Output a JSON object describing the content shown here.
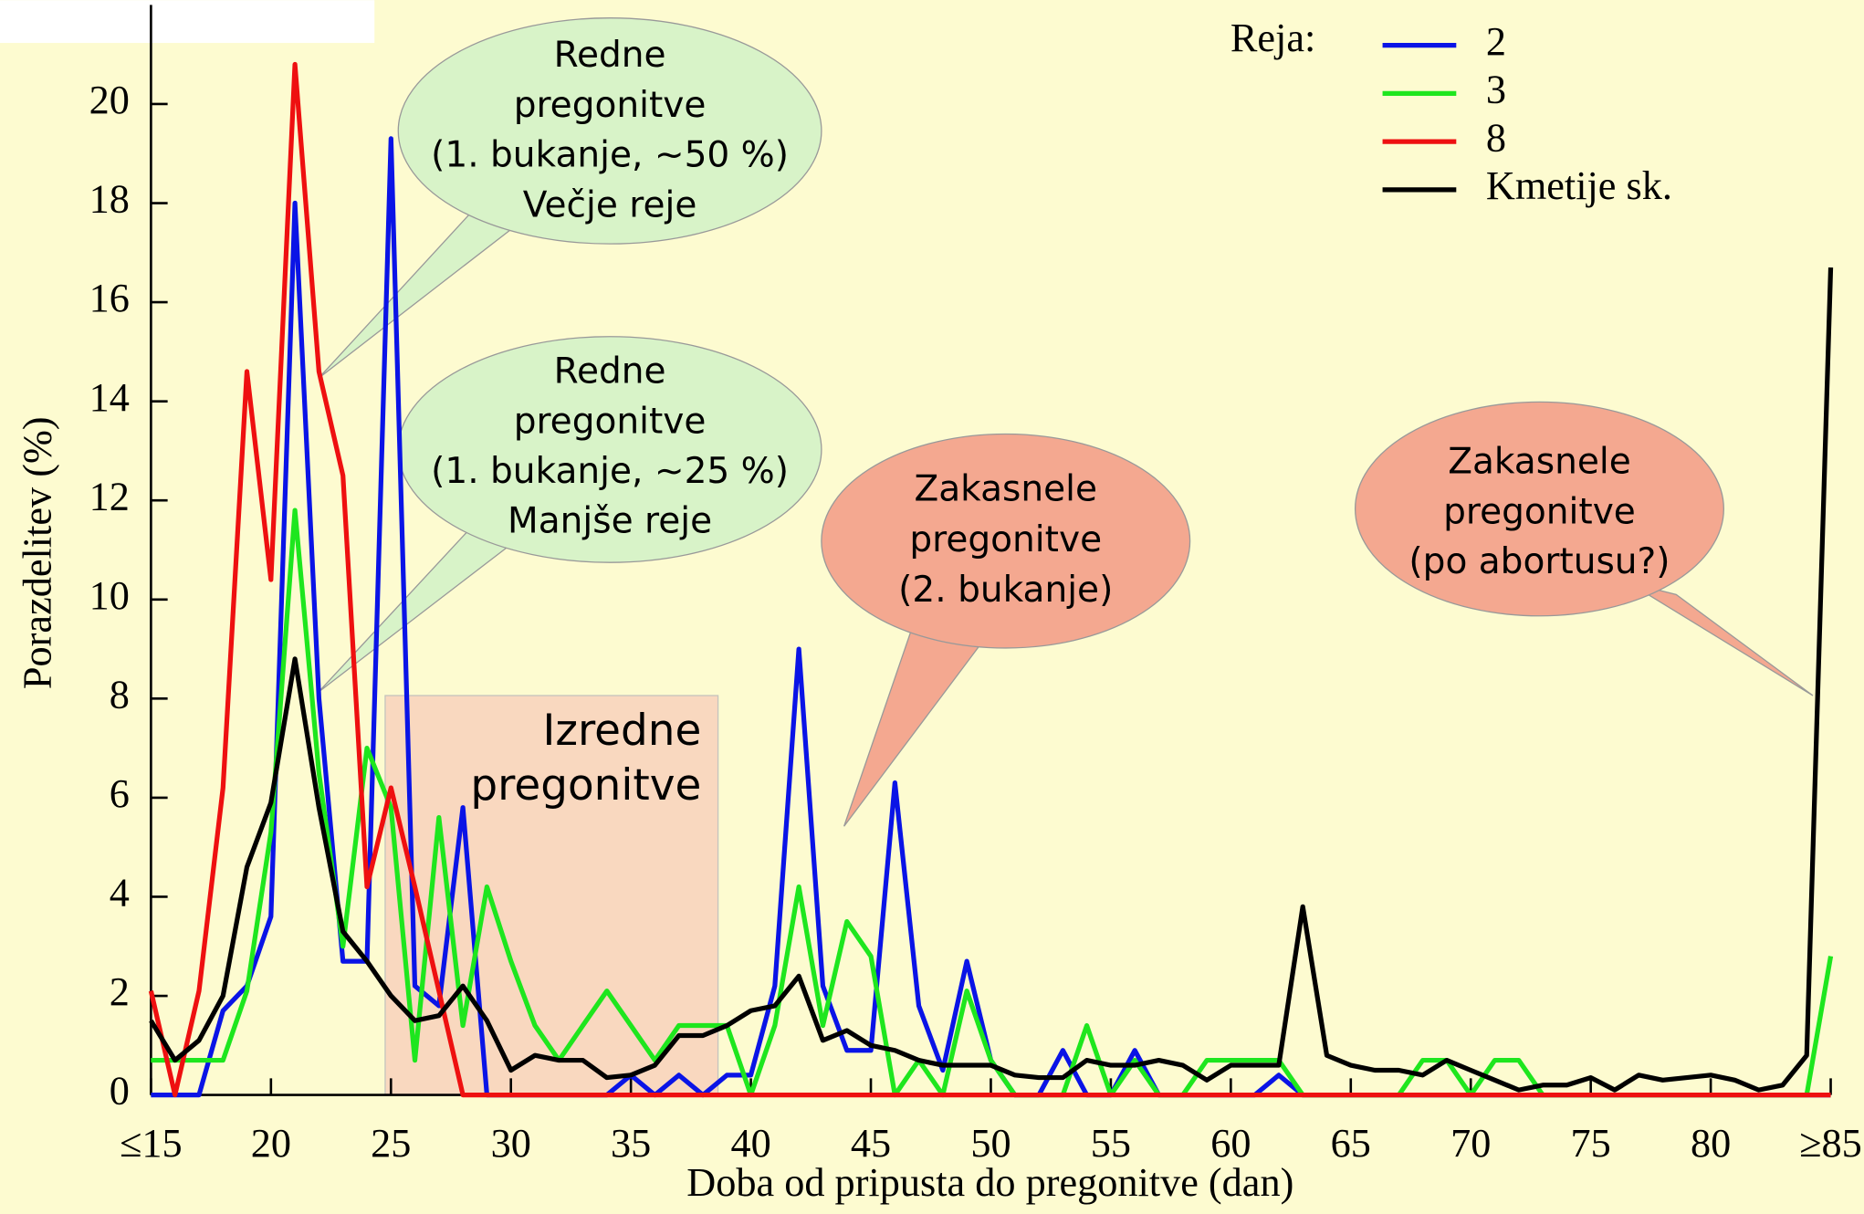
{
  "chart_data": {
    "type": "line",
    "x_label": "Doba od pripusta do pregonitve (dan)",
    "y_label": "Porazdelitev (%)",
    "legend_title": "Reja:",
    "x": [
      15,
      16,
      17,
      18,
      19,
      20,
      21,
      22,
      23,
      24,
      25,
      26,
      27,
      28,
      29,
      30,
      31,
      32,
      33,
      34,
      35,
      36,
      37,
      38,
      39,
      40,
      41,
      42,
      43,
      44,
      45,
      46,
      47,
      48,
      49,
      50,
      51,
      52,
      53,
      54,
      55,
      56,
      57,
      58,
      59,
      60,
      61,
      62,
      63,
      64,
      65,
      66,
      67,
      68,
      69,
      70,
      71,
      72,
      73,
      74,
      75,
      76,
      77,
      78,
      79,
      80,
      81,
      82,
      83,
      84,
      85
    ],
    "series": [
      {
        "name": "2",
        "color": "#0a14e6",
        "values": [
          0,
          0,
          0,
          1.7,
          2.2,
          3.6,
          18,
          8,
          2.7,
          2.7,
          19.3,
          2.2,
          1.8,
          5.8,
          0,
          0,
          0,
          0,
          0,
          0,
          0.4,
          0,
          0.4,
          0,
          0.4,
          0.4,
          2.2,
          9,
          2.2,
          0.9,
          0.9,
          6.3,
          1.8,
          0.5,
          2.7,
          0.7,
          0,
          0,
          0.9,
          0,
          0,
          0.9,
          0,
          0,
          0,
          0,
          0,
          0.4,
          0,
          0,
          0,
          0,
          0,
          0,
          0,
          0,
          0,
          0,
          0,
          0,
          0,
          0,
          0,
          0,
          0,
          0,
          0,
          0,
          0,
          0,
          0
        ]
      },
      {
        "name": "3",
        "color": "#1ee61e",
        "values": [
          0.7,
          0.7,
          0.7,
          0.7,
          2.1,
          5.3,
          11.8,
          6.5,
          3,
          7,
          5.8,
          0.7,
          5.6,
          1.4,
          4.2,
          2.7,
          1.4,
          0.7,
          1.4,
          2.1,
          1.4,
          0.7,
          1.4,
          1.4,
          1.4,
          0,
          1.4,
          4.2,
          1.4,
          3.5,
          2.8,
          0,
          0.7,
          0,
          2.1,
          0.7,
          0,
          0,
          0,
          1.4,
          0,
          0.7,
          0,
          0,
          0.7,
          0.7,
          0.7,
          0.7,
          0,
          0,
          0,
          0,
          0,
          0.7,
          0.7,
          0,
          0.7,
          0.7,
          0,
          0,
          0,
          0,
          0,
          0,
          0,
          0,
          0,
          0,
          0,
          0,
          2.8
        ]
      },
      {
        "name": "8",
        "color": "#ee1010",
        "values": [
          2.1,
          0,
          2.1,
          6.2,
          14.6,
          10.4,
          20.8,
          14.6,
          12.5,
          4.2,
          6.2,
          4.2,
          2.1,
          0,
          0,
          0,
          0,
          0,
          0,
          0,
          0,
          0,
          0,
          0,
          0,
          0,
          0,
          0,
          0,
          0,
          0,
          0,
          0,
          0,
          0,
          0,
          0,
          0,
          0,
          0,
          0,
          0,
          0,
          0,
          0,
          0,
          0,
          0,
          0,
          0,
          0,
          0,
          0,
          0,
          0,
          0,
          0,
          0,
          0,
          0,
          0,
          0,
          0,
          0,
          0,
          0,
          0,
          0,
          0,
          0,
          0
        ]
      },
      {
        "name": "Kmetije sk.",
        "color": "#000000",
        "values": [
          1.5,
          0.7,
          1.1,
          2,
          4.6,
          5.9,
          8.8,
          5.8,
          3.3,
          2.7,
          2,
          1.5,
          1.6,
          2.2,
          1.5,
          0.5,
          0.8,
          0.7,
          0.7,
          0.35,
          0.4,
          0.6,
          1.2,
          1.2,
          1.4,
          1.7,
          1.8,
          2.4,
          1.1,
          1.3,
          1,
          0.9,
          0.7,
          0.6,
          0.6,
          0.6,
          0.4,
          0.35,
          0.35,
          0.7,
          0.6,
          0.6,
          0.7,
          0.6,
          0.3,
          0.6,
          0.6,
          0.6,
          3.8,
          0.8,
          0.6,
          0.5,
          0.5,
          0.4,
          0.7,
          0.5,
          0.3,
          0.1,
          0.2,
          0.2,
          0.35,
          0.1,
          0.4,
          0.3,
          0.35,
          0.4,
          0.3,
          0.1,
          0.2,
          0.8,
          16.7
        ]
      }
    ],
    "xlim": [
      15,
      85
    ],
    "xticks": [
      {
        "value": 15,
        "label": "≤15"
      },
      20,
      25,
      30,
      35,
      40,
      45,
      50,
      55,
      60,
      65,
      70,
      75,
      80,
      {
        "value": 85,
        "label": "≥85"
      }
    ],
    "ylim": [
      0,
      22
    ],
    "yticks": [
      0,
      2,
      4,
      6,
      8,
      10,
      12,
      14,
      16,
      18,
      20
    ],
    "annotations": [
      {
        "lines": [
          "Redne",
          "pregonitve",
          "(1. bukanje, ~50 %)",
          "Večje reje"
        ]
      },
      {
        "lines": [
          "Redne",
          "pregonitve",
          "(1. bukanje, ~25 %)",
          "Manjše reje"
        ]
      },
      {
        "lines": [
          "Zakasnele",
          "pregonitve",
          "(2. bukanje)"
        ]
      },
      {
        "lines": [
          "Zakasnele",
          "pregonitve",
          "(po abortusu?)"
        ]
      },
      {
        "lines": [
          "Izredne",
          "pregonitve"
        ]
      }
    ]
  }
}
